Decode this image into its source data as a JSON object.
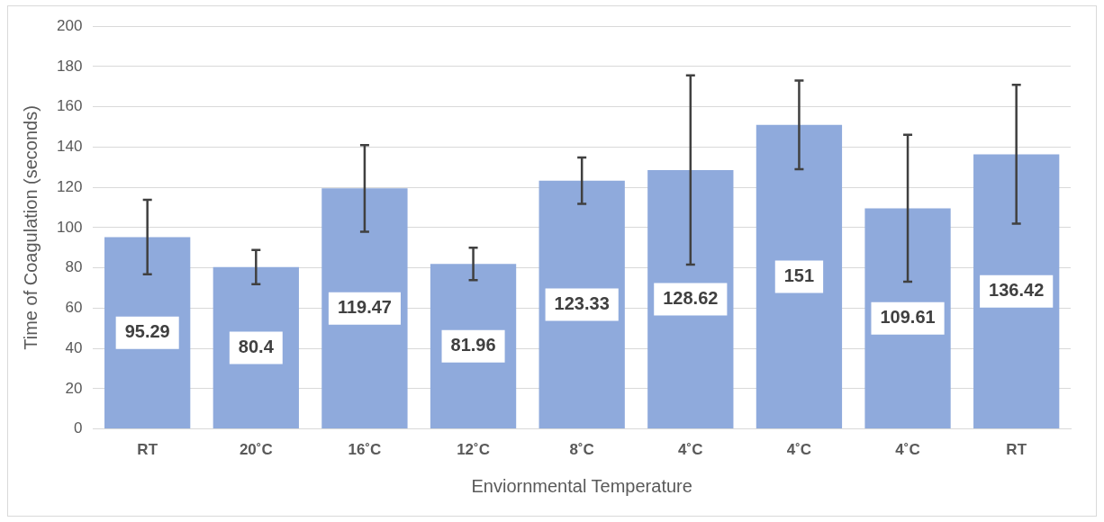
{
  "chart_data": {
    "type": "bar",
    "xlabel": "Enviornmental Temperature",
    "ylabel": "Time of Coagulation (seconds)",
    "categories": [
      "RT",
      "20˚C",
      "16˚C",
      "12˚C",
      "8˚C",
      "4˚C",
      "4˚C",
      "4˚C",
      "RT"
    ],
    "values": [
      95.29,
      80.4,
      119.47,
      81.96,
      123.33,
      128.62,
      151,
      109.61,
      136.42
    ],
    "errors": [
      18.5,
      8.5,
      21.5,
      8,
      11.5,
      47,
      22,
      36.5,
      34.5
    ],
    "color": "#8faadc",
    "ylim": [
      0,
      200
    ],
    "yticks": [
      0,
      20,
      40,
      60,
      80,
      100,
      120,
      140,
      160,
      180,
      200
    ],
    "grid": "y",
    "data_labels": true,
    "legend": false
  }
}
